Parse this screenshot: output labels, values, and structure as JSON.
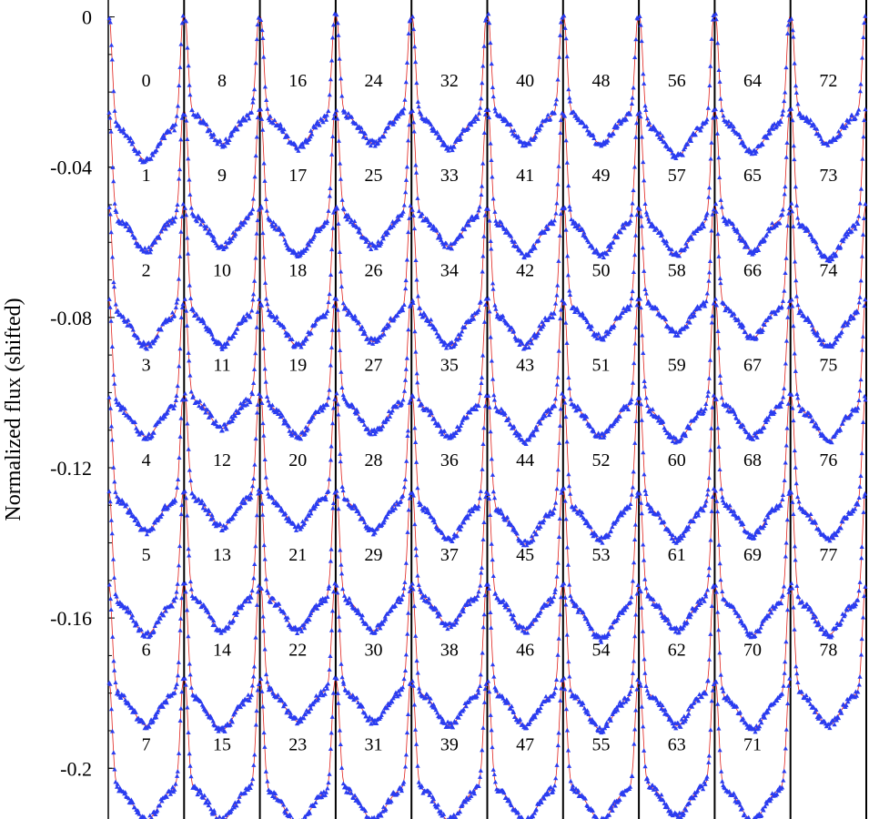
{
  "chart_data": {
    "type": "scatter",
    "title": "",
    "ylabel": "Normalized flux (shifted)",
    "xlabel": "",
    "ylim": [
      -0.2135,
      0.0045
    ],
    "yticks": [
      {
        "value": 0,
        "label": "0"
      },
      {
        "value": -0.04,
        "label": "-0.04"
      },
      {
        "value": -0.08,
        "label": "-0.08"
      },
      {
        "value": -0.12,
        "label": "-0.12"
      },
      {
        "value": -0.16,
        "label": "-0.16"
      },
      {
        "value": -0.2,
        "label": "-0.2"
      }
    ],
    "columns": 10,
    "rows": 8,
    "row_shift": -0.02525,
    "row_baselines": [
      0,
      -0.02525,
      -0.0505,
      -0.07575,
      -0.101,
      -0.12625,
      -0.1515,
      -0.17675
    ],
    "cycle_labels": [
      "0",
      "1",
      "2",
      "3",
      "4",
      "5",
      "6",
      "7",
      "8",
      "9",
      "10",
      "11",
      "12",
      "13",
      "14",
      "15",
      "16",
      "17",
      "18",
      "19",
      "20",
      "21",
      "22",
      "23",
      "24",
      "25",
      "26",
      "27",
      "28",
      "29",
      "30",
      "31",
      "32",
      "33",
      "34",
      "35",
      "36",
      "37",
      "38",
      "39",
      "40",
      "41",
      "42",
      "43",
      "44",
      "45",
      "46",
      "47",
      "48",
      "49",
      "50",
      "51",
      "52",
      "53",
      "54",
      "55",
      "56",
      "57",
      "58",
      "59",
      "60",
      "61",
      "62",
      "63",
      "64",
      "65",
      "66",
      "67",
      "68",
      "69",
      "70",
      "71",
      "72",
      "73",
      "74",
      "75",
      "76",
      "77",
      "78"
    ],
    "eclipse_depths": [
      [
        0.034,
        0.03,
        0.031,
        0.03,
        0.031,
        0.03,
        0.03,
        0.033,
        0.032,
        0.03
      ],
      [
        0.033,
        0.032,
        0.034,
        0.032,
        0.032,
        0.034,
        0.034,
        0.034,
        0.033,
        0.035
      ],
      [
        0.033,
        0.033,
        0.033,
        0.032,
        0.033,
        0.033,
        0.031,
        0.03,
        0.031,
        0.033
      ],
      [
        0.032,
        0.03,
        0.032,
        0.031,
        0.032,
        0.033,
        0.032,
        0.033,
        0.032,
        0.033
      ],
      [
        0.032,
        0.031,
        0.031,
        0.032,
        0.034,
        0.035,
        0.034,
        0.034,
        0.033,
        0.034
      ],
      [
        0.034,
        0.033,
        0.033,
        0.033,
        0.032,
        0.033,
        0.035,
        0.033,
        0.034,
        0.034
      ],
      [
        0.033,
        0.034,
        0.032,
        0.032,
        0.033,
        0.033,
        0.034,
        0.033,
        0.034,
        0.033
      ],
      [
        0.033,
        0.033,
        0.034,
        0.033,
        0.033,
        0.033,
        0.033,
        0.032,
        0.033
      ]
    ],
    "series": [
      {
        "marker": "triangle",
        "color": "#2a3cf0"
      },
      {
        "line": "model-fit",
        "color": "#e0201b"
      }
    ],
    "colors": {
      "points": "#2a3cf0",
      "fit": "#e0201b",
      "separator": "#000000"
    }
  }
}
